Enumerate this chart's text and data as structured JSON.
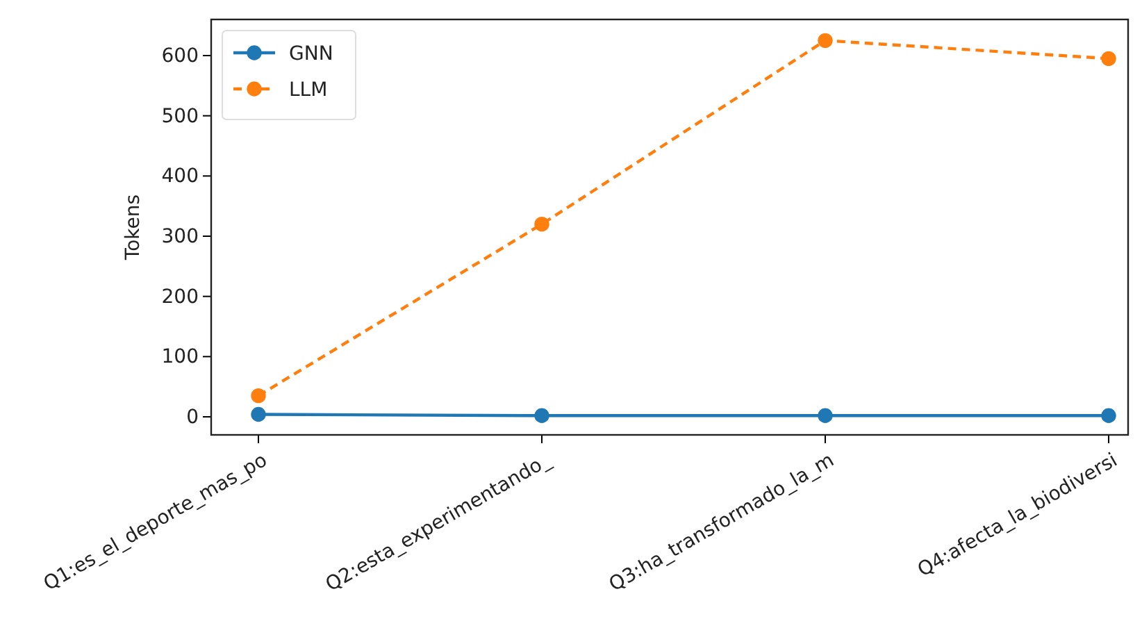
{
  "chart_data": {
    "type": "line",
    "ylabel": "Tokens",
    "categories": [
      "Q1:es_el_deporte_mas_po",
      "Q2:esta_experimentando_",
      "Q3:ha_transformado_la_m",
      "Q4:afecta_la_biodiversi"
    ],
    "series": [
      {
        "name": "GNN",
        "color": "#1f77b4",
        "values": [
          4,
          2,
          2,
          2
        ],
        "line_style": "solid",
        "marker": "circle"
      },
      {
        "name": "LLM",
        "color": "#ff7f0e",
        "values": [
          35,
          320,
          625,
          595
        ],
        "line_style": "dashed",
        "marker": "circle"
      }
    ],
    "ylim": [
      -30,
      660
    ],
    "yticks": [
      0,
      100,
      200,
      300,
      400,
      500,
      600
    ],
    "grid": false,
    "legend": "top left"
  }
}
